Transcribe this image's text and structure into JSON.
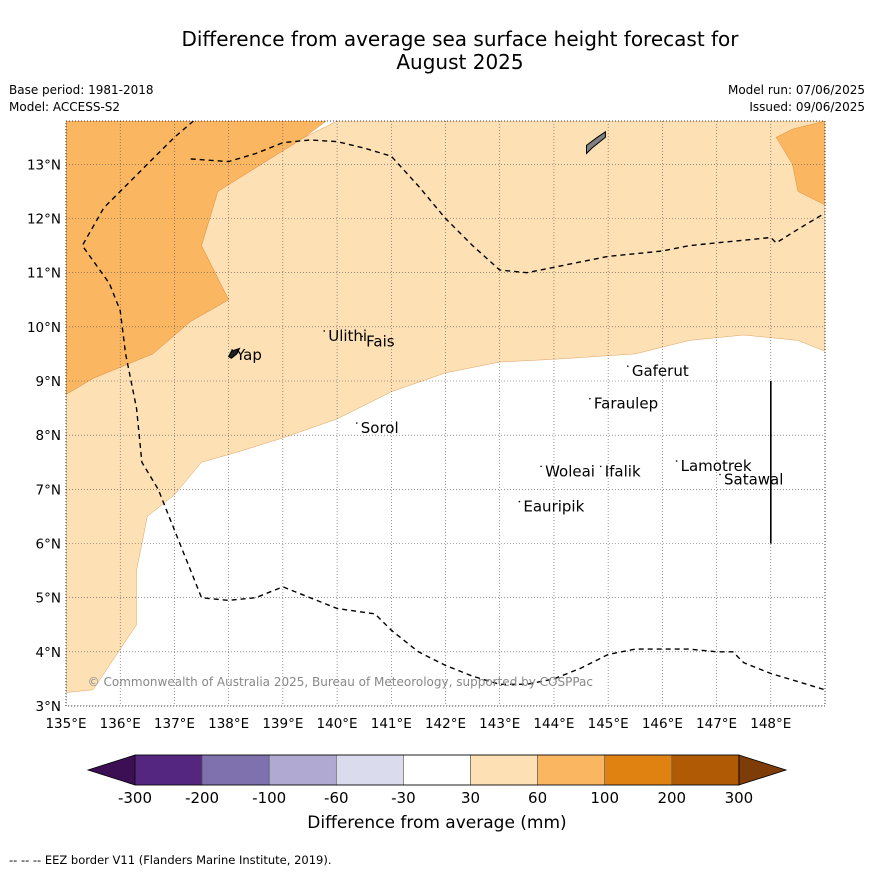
{
  "title_line1": "Difference from average sea surface height forecast for",
  "title_line2": "August 2025",
  "base_period": "Base period: 1981-2018",
  "model": "Model: ACCESS-S2",
  "model_run": "Model run: 07/06/2025",
  "issued": "Issued: 09/06/2025",
  "copyright": "© Commonwealth of Australia 2025, Bureau of Meteorology, supported by COSPPac",
  "colorbar_title": "Difference from average (mm)",
  "footer": "-- -- -- EEZ border V11 (Flanders Marine Institute, 2019).",
  "map": {
    "lon_range": [
      135,
      149
    ],
    "lat_range": [
      3,
      13.8
    ],
    "lon_ticks": [
      {
        "v": 135,
        "label": "135°E"
      },
      {
        "v": 136,
        "label": "136°E"
      },
      {
        "v": 137,
        "label": "137°E"
      },
      {
        "v": 138,
        "label": "138°E"
      },
      {
        "v": 139,
        "label": "139°E"
      },
      {
        "v": 140,
        "label": "140°E"
      },
      {
        "v": 141,
        "label": "141°E"
      },
      {
        "v": 142,
        "label": "142°E"
      },
      {
        "v": 143,
        "label": "143°E"
      },
      {
        "v": 144,
        "label": "144°E"
      },
      {
        "v": 145,
        "label": "145°E"
      },
      {
        "v": 146,
        "label": "146°E"
      },
      {
        "v": 147,
        "label": "147°E"
      },
      {
        "v": 148,
        "label": "148°E"
      }
    ],
    "lat_ticks": [
      {
        "v": 3,
        "label": "3°N"
      },
      {
        "v": 4,
        "label": "4°N"
      },
      {
        "v": 5,
        "label": "5°N"
      },
      {
        "v": 6,
        "label": "6°N"
      },
      {
        "v": 7,
        "label": "7°N"
      },
      {
        "v": 8,
        "label": "8°N"
      },
      {
        "v": 9,
        "label": "9°N"
      },
      {
        "v": 10,
        "label": "10°N"
      },
      {
        "v": 11,
        "label": "11°N"
      },
      {
        "v": 12,
        "label": "12°N"
      },
      {
        "v": 13,
        "label": "13°N"
      }
    ],
    "places": [
      {
        "name": "Ulithi",
        "lon": 139.8,
        "lat": 9.85
      },
      {
        "name": "Fais",
        "lon": 140.5,
        "lat": 9.75
      },
      {
        "name": "Yap",
        "lon": 138.1,
        "lat": 9.5
      },
      {
        "name": "Gaferut",
        "lon": 145.4,
        "lat": 9.2
      },
      {
        "name": "Faraulep",
        "lon": 144.7,
        "lat": 8.6
      },
      {
        "name": "Sorol",
        "lon": 140.4,
        "lat": 8.15
      },
      {
        "name": "Woleai",
        "lon": 143.8,
        "lat": 7.35
      },
      {
        "name": "Ifalik",
        "lon": 144.9,
        "lat": 7.35
      },
      {
        "name": "Lamotrek",
        "lon": 146.3,
        "lat": 7.45
      },
      {
        "name": "Satawal",
        "lon": 147.1,
        "lat": 7.2
      },
      {
        "name": "Eauripik",
        "lon": 143.4,
        "lat": 6.7
      }
    ],
    "fill_30_60": "#fde0b4",
    "fill_60_100": "#fbb661",
    "region_30_60": [
      [
        135,
        8.75
      ],
      [
        135.5,
        9.05
      ],
      [
        136.6,
        9.5
      ],
      [
        137.3,
        10.1
      ],
      [
        138,
        10.5
      ],
      [
        137.5,
        11.5
      ],
      [
        137.8,
        12.5
      ],
      [
        138.6,
        13
      ],
      [
        139.4,
        13.5
      ],
      [
        140,
        13.8
      ],
      [
        149,
        13.8
      ],
      [
        149,
        9.55
      ],
      [
        148.5,
        9.75
      ],
      [
        147.5,
        9.85
      ],
      [
        146.5,
        9.75
      ],
      [
        145.5,
        9.5
      ],
      [
        144,
        9.4
      ],
      [
        143,
        9.35
      ],
      [
        142,
        9.15
      ],
      [
        141,
        8.8
      ],
      [
        140,
        8.3
      ],
      [
        139,
        7.95
      ],
      [
        138.2,
        7.7
      ],
      [
        137.5,
        7.5
      ],
      [
        137,
        6.9
      ],
      [
        136.5,
        6.5
      ],
      [
        136.3,
        5.5
      ],
      [
        136.3,
        4.5
      ],
      [
        135.5,
        3.3
      ],
      [
        135,
        3.25
      ]
    ],
    "region_60_100_west": [
      [
        135,
        13.8
      ],
      [
        139.8,
        13.8
      ],
      [
        139.4,
        13.5
      ],
      [
        138.6,
        13
      ],
      [
        137.8,
        12.5
      ],
      [
        137.5,
        11.5
      ],
      [
        138,
        10.5
      ],
      [
        137.3,
        10.1
      ],
      [
        136.6,
        9.5
      ],
      [
        135.5,
        9.05
      ],
      [
        135,
        8.75
      ]
    ],
    "region_60_100_east": [
      [
        148.1,
        13.5
      ],
      [
        148.4,
        13.65
      ],
      [
        149,
        13.8
      ],
      [
        149,
        12.25
      ],
      [
        148.5,
        12.5
      ],
      [
        148.4,
        13
      ]
    ],
    "eez_line": [
      [
        137.35,
        13.8
      ],
      [
        137,
        13.5
      ],
      [
        136.5,
        13
      ],
      [
        136,
        12.5
      ],
      [
        135.7,
        12.2
      ],
      [
        135.3,
        11.5
      ],
      [
        135.8,
        10.8
      ],
      [
        136,
        10.3
      ],
      [
        136.1,
        9.5
      ],
      [
        136.3,
        8.5
      ],
      [
        136.4,
        7.5
      ],
      [
        136.7,
        7
      ],
      [
        136.9,
        6.5
      ],
      [
        137.1,
        6
      ],
      [
        137.3,
        5.5
      ],
      [
        137.5,
        5
      ],
      [
        138,
        4.95
      ],
      [
        138.5,
        5
      ],
      [
        139,
        5.2
      ],
      [
        139.5,
        5
      ],
      [
        140,
        4.8
      ],
      [
        140.7,
        4.7
      ],
      [
        141,
        4.4
      ],
      [
        141.5,
        4
      ],
      [
        142,
        3.75
      ],
      [
        142.5,
        3.55
      ],
      [
        143,
        3.4
      ],
      [
        143.5,
        3.4
      ],
      [
        144,
        3.5
      ],
      [
        144.5,
        3.7
      ],
      [
        145,
        3.95
      ],
      [
        145.5,
        4.05
      ],
      [
        146,
        4.05
      ],
      [
        146.5,
        4.05
      ],
      [
        147,
        4.0
      ],
      [
        147.3,
        4.0
      ],
      [
        147.5,
        3.8
      ],
      [
        148,
        3.6
      ],
      [
        148.5,
        3.45
      ],
      [
        149,
        3.3
      ]
    ],
    "eez_line2": [
      [
        137.3,
        13.1
      ],
      [
        138,
        13.05
      ],
      [
        138.5,
        13.2
      ],
      [
        139,
        13.4
      ],
      [
        139.5,
        13.45
      ],
      [
        140,
        13.42
      ],
      [
        140.5,
        13.3
      ],
      [
        141,
        13.15
      ],
      [
        141.5,
        12.6
      ],
      [
        142,
        12.0
      ],
      [
        142.5,
        11.5
      ],
      [
        143,
        11.05
      ],
      [
        143.5,
        11.0
      ],
      [
        144,
        11.1
      ],
      [
        144.5,
        11.2
      ],
      [
        145,
        11.3
      ],
      [
        145.5,
        11.35
      ],
      [
        146,
        11.4
      ],
      [
        146.5,
        11.5
      ],
      [
        147,
        11.55
      ],
      [
        147.5,
        11.6
      ],
      [
        148,
        11.65
      ],
      [
        148.1,
        11.55
      ],
      [
        148.5,
        11.8
      ],
      [
        149,
        12.1
      ]
    ],
    "boundary_line": [
      [
        148,
        9
      ],
      [
        148,
        6
      ]
    ],
    "guam": [
      [
        144.6,
        13.2
      ],
      [
        144.6,
        13.35
      ],
      [
        144.8,
        13.5
      ],
      [
        144.95,
        13.6
      ],
      [
        144.95,
        13.5
      ],
      [
        144.7,
        13.3
      ]
    ],
    "yap_island": [
      [
        138.0,
        9.45
      ],
      [
        138.05,
        9.55
      ],
      [
        138.2,
        9.6
      ],
      [
        138.15,
        9.5
      ],
      [
        138.05,
        9.42
      ]
    ]
  },
  "colorbar": {
    "colors": [
      "#3c0e54",
      "#54267f",
      "#7e71ad",
      "#b0a9d2",
      "#dadbec",
      "#ffffff",
      "#fde0b4",
      "#fbb661",
      "#e08212",
      "#b15a05",
      "#7e3c08"
    ],
    "ticks": [
      "-300",
      "-200",
      "-100",
      "-60",
      "-30",
      "30",
      "60",
      "100",
      "200",
      "300"
    ]
  }
}
